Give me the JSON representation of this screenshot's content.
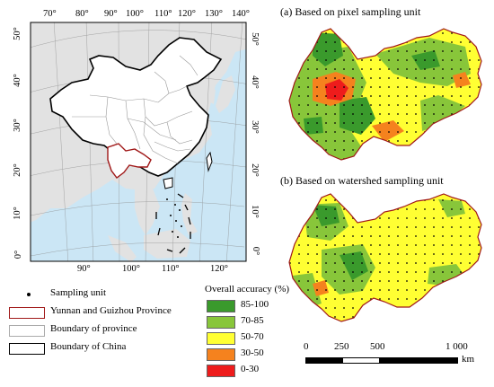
{
  "china_map": {
    "top_lon_ticks": [
      "70°",
      "80°",
      "90°",
      "100°",
      "110°",
      "120°",
      "130°",
      "140°"
    ],
    "bottom_lon_ticks": [
      "90°",
      "100°",
      "110°",
      "120°"
    ],
    "left_lat_ticks": [
      "50°",
      "40°",
      "30°",
      "20°",
      "10°",
      "0°"
    ],
    "right_lat_ticks": [
      "50°",
      "40°",
      "30°",
      "20°",
      "10°",
      "0°"
    ],
    "colors": {
      "sea": "#cbe6f5",
      "land": "#e2e2e2",
      "china_fill": "#ffffff",
      "region_outline": "#a01818"
    }
  },
  "panel_a": {
    "title": "(a) Based on pixel sampling unit"
  },
  "panel_b": {
    "title": "(b) Based on watershed sampling unit"
  },
  "legend_left": {
    "items": [
      {
        "label": "Sampling unit",
        "symbol": "dot"
      },
      {
        "label": "Yunnan and Guizhou Province",
        "symbol": "box",
        "color": "#a01818"
      },
      {
        "label": "Boundary of province",
        "symbol": "box",
        "color": "#aaaaaa"
      },
      {
        "label": "Boundary of China",
        "symbol": "box",
        "color": "#000000"
      }
    ]
  },
  "accuracy_legend": {
    "title": "Overall accuracy (%)",
    "classes": [
      {
        "label": "85-100",
        "color": "#3a9a2c"
      },
      {
        "label": "70-85",
        "color": "#88c63a"
      },
      {
        "label": "50-70",
        "color": "#ffff33"
      },
      {
        "label": "30-50",
        "color": "#f5821e"
      },
      {
        "label": "0-30",
        "color": "#ee1c1c"
      }
    ]
  },
  "scale_bar": {
    "labels": [
      "0",
      "250",
      "500",
      "1 000"
    ],
    "unit": "km"
  }
}
